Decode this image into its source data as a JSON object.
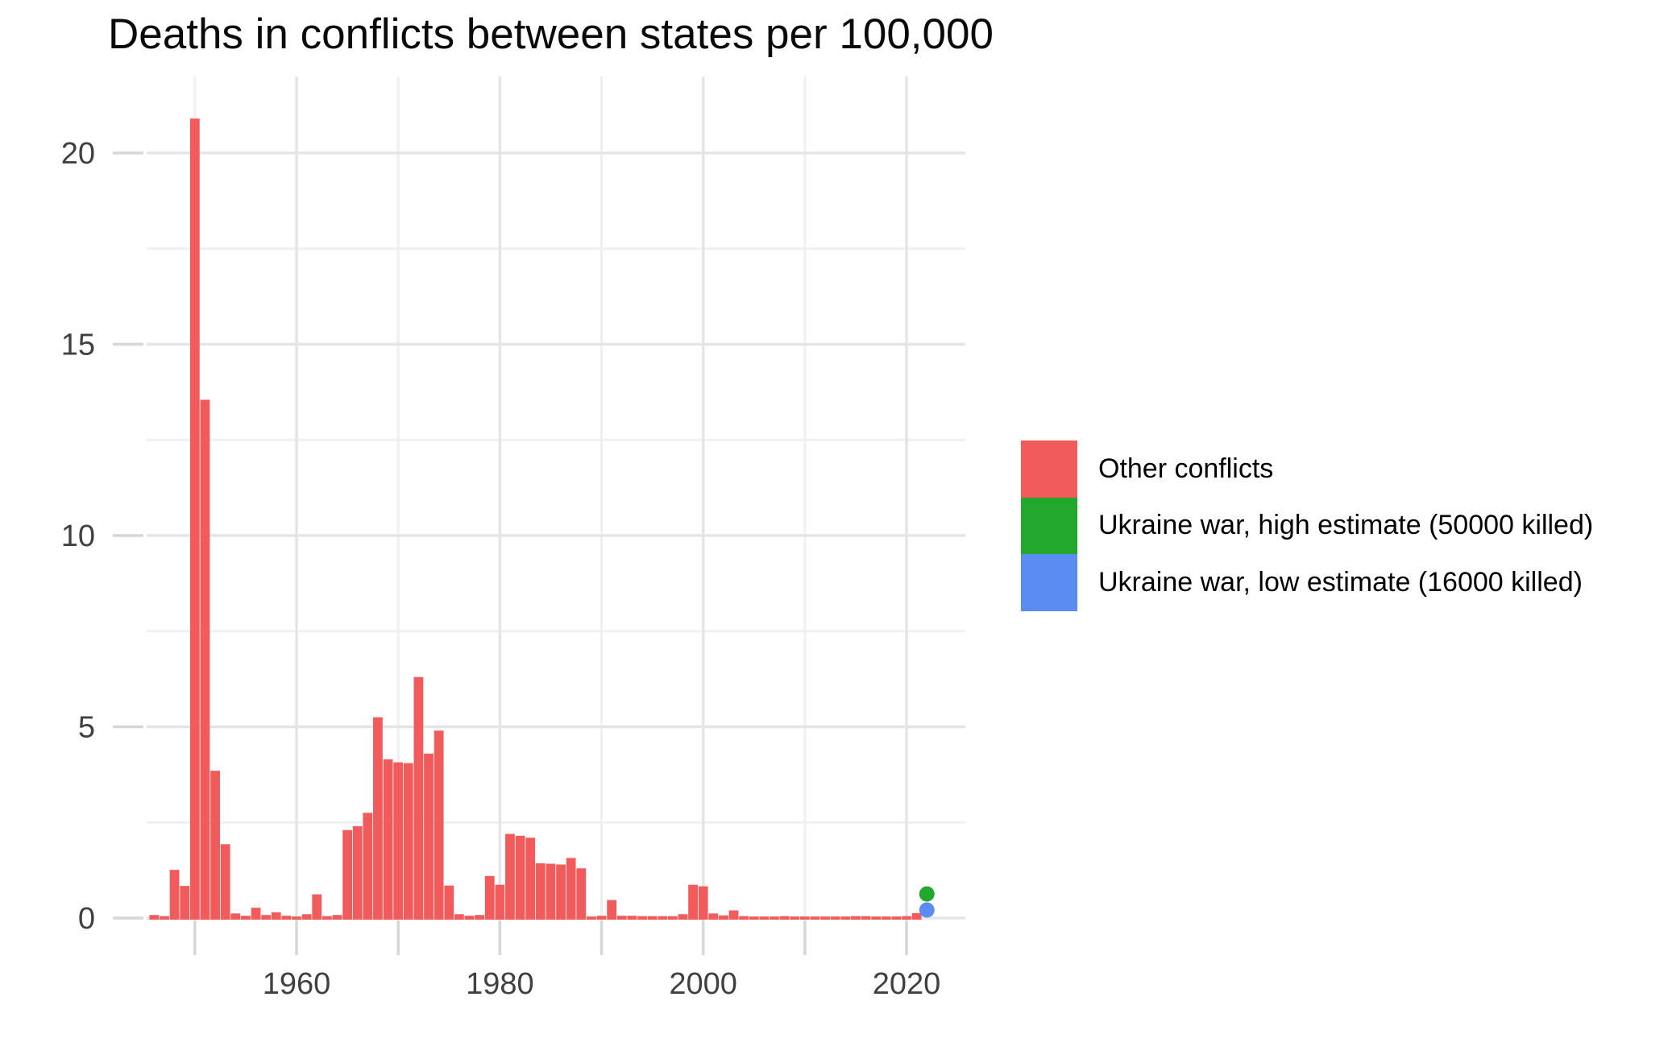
{
  "title": "Deaths in conflicts between states per 100,000",
  "colors": {
    "bar_red": "#F15B5B",
    "ukraine_high_green": "#22A82C",
    "ukraine_low_blue": "#5B8CF2",
    "grid_major": "#E5E5E5",
    "grid_minor": "#F0F0F0",
    "axis_tick": "#D6D6D6",
    "tick_label": "#404040",
    "title_text": "#0a0a0a"
  },
  "legend": {
    "items": [
      {
        "id": "other-conflicts",
        "label": "Other conflicts",
        "color_key": "bar_red"
      },
      {
        "id": "ukraine-war-high",
        "label": "Ukraine war, high estimate (50000 killed)",
        "color_key": "ukraine_high_green"
      },
      {
        "id": "ukraine-war-low",
        "label": "Ukraine war, low estimate (16000 killed)",
        "color_key": "ukraine_low_blue"
      }
    ]
  },
  "chart_data": {
    "type": "bar",
    "title": "Deaths in conflicts between states per 100,000",
    "xlabel": "",
    "ylabel": "",
    "grid": "on",
    "legend_position": "right-center",
    "xlim": [
      1945.3,
      2025.8
    ],
    "ylim": [
      0,
      22
    ],
    "x_tick_labels": [
      1960,
      1980,
      2000,
      2020
    ],
    "x_ticks_all": [
      1950,
      1960,
      1970,
      1980,
      1990,
      2000,
      2010,
      2020
    ],
    "x_gridlines_major": [
      1960,
      1980,
      2000,
      2020
    ],
    "x_gridlines_minor": [
      1950,
      1970,
      1990,
      2010
    ],
    "y_tick_labels": [
      0,
      5,
      10,
      15,
      20
    ],
    "y_gridlines_major": [
      0,
      5,
      10,
      15,
      20
    ],
    "y_gridlines_minor": [
      2.5,
      7.5,
      12.5,
      17.5
    ],
    "bar_series_name": "Other conflicts",
    "years": [
      1946,
      1947,
      1948,
      1949,
      1950,
      1951,
      1952,
      1953,
      1954,
      1955,
      1956,
      1957,
      1958,
      1959,
      1960,
      1961,
      1962,
      1963,
      1964,
      1965,
      1966,
      1967,
      1968,
      1969,
      1970,
      1971,
      1972,
      1973,
      1974,
      1975,
      1976,
      1977,
      1978,
      1979,
      1980,
      1981,
      1982,
      1983,
      1984,
      1985,
      1986,
      1987,
      1988,
      1989,
      1990,
      1991,
      1992,
      1993,
      1994,
      1995,
      1996,
      1997,
      1998,
      1999,
      2000,
      2001,
      2002,
      2003,
      2004,
      2005,
      2006,
      2007,
      2008,
      2009,
      2010,
      2011,
      2012,
      2013,
      2014,
      2015,
      2016,
      2017,
      2018,
      2019,
      2020,
      2021
    ],
    "values": [
      0.08,
      0.05,
      1.26,
      0.84,
      20.9,
      13.55,
      3.85,
      1.93,
      0.12,
      0.06,
      0.27,
      0.08,
      0.15,
      0.06,
      0.04,
      0.1,
      0.62,
      0.05,
      0.08,
      2.3,
      2.4,
      2.75,
      5.25,
      4.15,
      4.07,
      4.05,
      6.3,
      4.3,
      4.9,
      0.85,
      0.1,
      0.06,
      0.08,
      1.1,
      0.87,
      2.2,
      2.15,
      2.1,
      1.43,
      1.42,
      1.4,
      1.57,
      1.3,
      0.04,
      0.06,
      0.47,
      0.06,
      0.06,
      0.05,
      0.05,
      0.05,
      0.05,
      0.1,
      0.87,
      0.83,
      0.12,
      0.07,
      0.2,
      0.05,
      0.04,
      0.04,
      0.04,
      0.05,
      0.04,
      0.04,
      0.04,
      0.04,
      0.04,
      0.04,
      0.05,
      0.05,
      0.04,
      0.04,
      0.04,
      0.05,
      0.13
    ],
    "points": [
      {
        "name": "Ukraine war, high estimate (50000 killed)",
        "x": 2022,
        "y": 0.63,
        "color_key": "ukraine_high_green"
      },
      {
        "name": "Ukraine war, low estimate (16000 killed)",
        "x": 2022,
        "y": 0.21,
        "color_key": "ukraine_low_blue"
      }
    ]
  }
}
